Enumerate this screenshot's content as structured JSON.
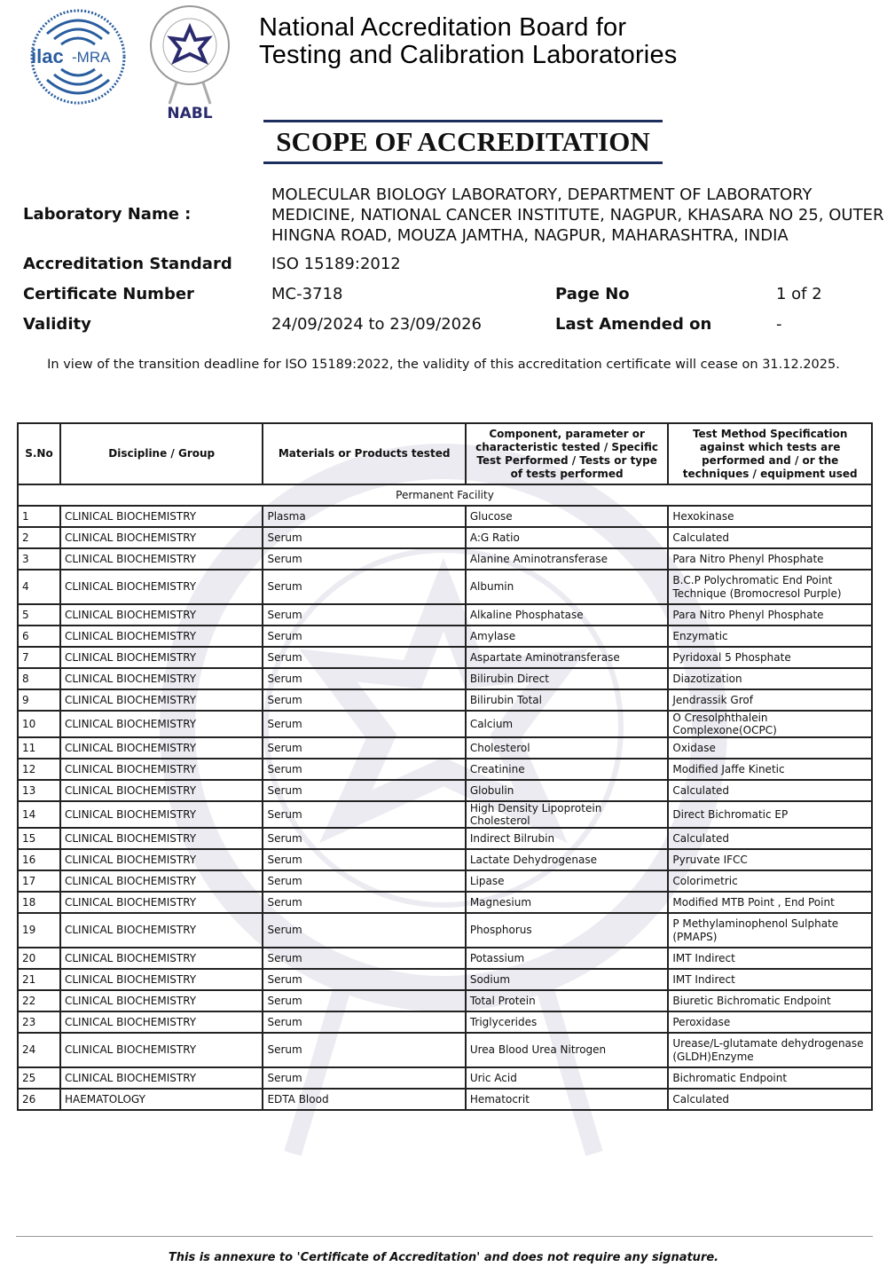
{
  "header": {
    "org_line1": "National Accreditation Board for",
    "org_line2": "Testing and Calibration Laboratories",
    "title": "SCOPE OF ACCREDITATION",
    "logos": [
      "ilac-MRA",
      "NABL"
    ]
  },
  "info": {
    "lab_name_label": "Laboratory Name :",
    "lab_name_lines": [
      "MOLECULAR BIOLOGY LABORATORY, DEPARTMENT OF LABORATORY",
      "MEDICINE, NATIONAL CANCER INSTITUTE, NAGPUR, KHASARA NO 25, OUTER",
      "HINGNA ROAD, MOUZA JAMTHA, NAGPUR, MAHARASHTRA, INDIA"
    ],
    "standard_label": "Accreditation Standard",
    "standard": "ISO 15189:2012",
    "cert_label": "Certificate Number",
    "cert": "MC-3718",
    "page_label": "Page No",
    "page": "1 of 2",
    "validity_label": "Validity",
    "validity": "24/09/2024 to 23/09/2026",
    "amended_label": "Last Amended on",
    "amended": "-"
  },
  "notice": "In view of the transition deadline for ISO 15189:2022, the validity of this accreditation certificate will cease on 31.12.2025.",
  "table": {
    "headers": [
      "S.No",
      "Discipline / Group",
      "Materials or Products tested",
      "Component, parameter or characteristic tested / Specific Test Performed / Tests or type of tests performed",
      "Test Method Specification against which tests are performed and / or the techniques / equipment used"
    ],
    "facility": "Permanent Facility",
    "rows": [
      [
        "1",
        "CLINICAL BIOCHEMISTRY",
        "Plasma",
        "Glucose",
        "Hexokinase"
      ],
      [
        "2",
        "CLINICAL BIOCHEMISTRY",
        "Serum",
        "A:G Ratio",
        "Calculated"
      ],
      [
        "3",
        "CLINICAL BIOCHEMISTRY",
        "Serum",
        "Alanine Aminotransferase",
        "Para Nitro Phenyl Phosphate"
      ],
      [
        "4",
        "CLINICAL BIOCHEMISTRY",
        "Serum",
        "Albumin",
        "B.C.P Polychromatic End Point Technique (Bromocresol Purple)"
      ],
      [
        "5",
        "CLINICAL BIOCHEMISTRY",
        "Serum",
        "Alkaline Phosphatase",
        "Para Nitro Phenyl Phosphate"
      ],
      [
        "6",
        "CLINICAL BIOCHEMISTRY",
        "Serum",
        "Amylase",
        "Enzymatic"
      ],
      [
        "7",
        "CLINICAL BIOCHEMISTRY",
        "Serum",
        "Aspartate Aminotransferase",
        "Pyridoxal 5 Phosphate"
      ],
      [
        "8",
        "CLINICAL BIOCHEMISTRY",
        "Serum",
        "Bilirubin Direct",
        "Diazotization"
      ],
      [
        "9",
        "CLINICAL BIOCHEMISTRY",
        "Serum",
        "Bilirubin Total",
        "Jendrassik Grof"
      ],
      [
        "10",
        "CLINICAL BIOCHEMISTRY",
        "Serum",
        "Calcium",
        "O Cresolphthalein Complexone(OCPC)"
      ],
      [
        "11",
        "CLINICAL BIOCHEMISTRY",
        "Serum",
        "Cholesterol",
        "Oxidase"
      ],
      [
        "12",
        "CLINICAL BIOCHEMISTRY",
        "Serum",
        "Creatinine",
        "Modified Jaffe Kinetic"
      ],
      [
        "13",
        "CLINICAL BIOCHEMISTRY",
        "Serum",
        "Globulin",
        "Calculated"
      ],
      [
        "14",
        "CLINICAL BIOCHEMISTRY",
        "Serum",
        "High Density Lipoprotein Cholesterol",
        "Direct Bichromatic EP"
      ],
      [
        "15",
        "CLINICAL BIOCHEMISTRY",
        "Serum",
        "Indirect Bilrubin",
        "Calculated"
      ],
      [
        "16",
        "CLINICAL BIOCHEMISTRY",
        "Serum",
        "Lactate Dehydrogenase",
        "Pyruvate IFCC"
      ],
      [
        "17",
        "CLINICAL BIOCHEMISTRY",
        "Serum",
        "Lipase",
        "Colorimetric"
      ],
      [
        "18",
        "CLINICAL BIOCHEMISTRY",
        "Serum",
        "Magnesium",
        "Modified MTB Point , End Point"
      ],
      [
        "19",
        "CLINICAL BIOCHEMISTRY",
        "Serum",
        "Phosphorus",
        "P Methylaminophenol Sulphate (PMAPS)"
      ],
      [
        "20",
        "CLINICAL BIOCHEMISTRY",
        "Serum",
        "Potassium",
        "IMT Indirect"
      ],
      [
        "21",
        "CLINICAL BIOCHEMISTRY",
        "Serum",
        "Sodium",
        "IMT Indirect"
      ],
      [
        "22",
        "CLINICAL BIOCHEMISTRY",
        "Serum",
        "Total Protein",
        "Biuretic Bichromatic Endpoint"
      ],
      [
        "23",
        "CLINICAL BIOCHEMISTRY",
        "Serum",
        "Triglycerides",
        "Peroxidase"
      ],
      [
        "24",
        "CLINICAL BIOCHEMISTRY",
        "Serum",
        "Urea Blood Urea Nitrogen",
        "Urease/L-glutamate dehydrogenase (GLDH)Enzyme"
      ],
      [
        "25",
        "CLINICAL BIOCHEMISTRY",
        "Serum",
        "Uric Acid",
        "Bichromatic Endpoint"
      ],
      [
        "26",
        "HAEMATOLOGY",
        "EDTA Blood",
        "Hematocrit",
        "Calculated"
      ]
    ]
  },
  "footer": "This is annexure to 'Certificate of Accreditation' and does not require any signature.",
  "colors": {
    "rule": "#1d2f5f",
    "ilac": "#2a5d9f",
    "nabl": "#2a2a6e"
  }
}
